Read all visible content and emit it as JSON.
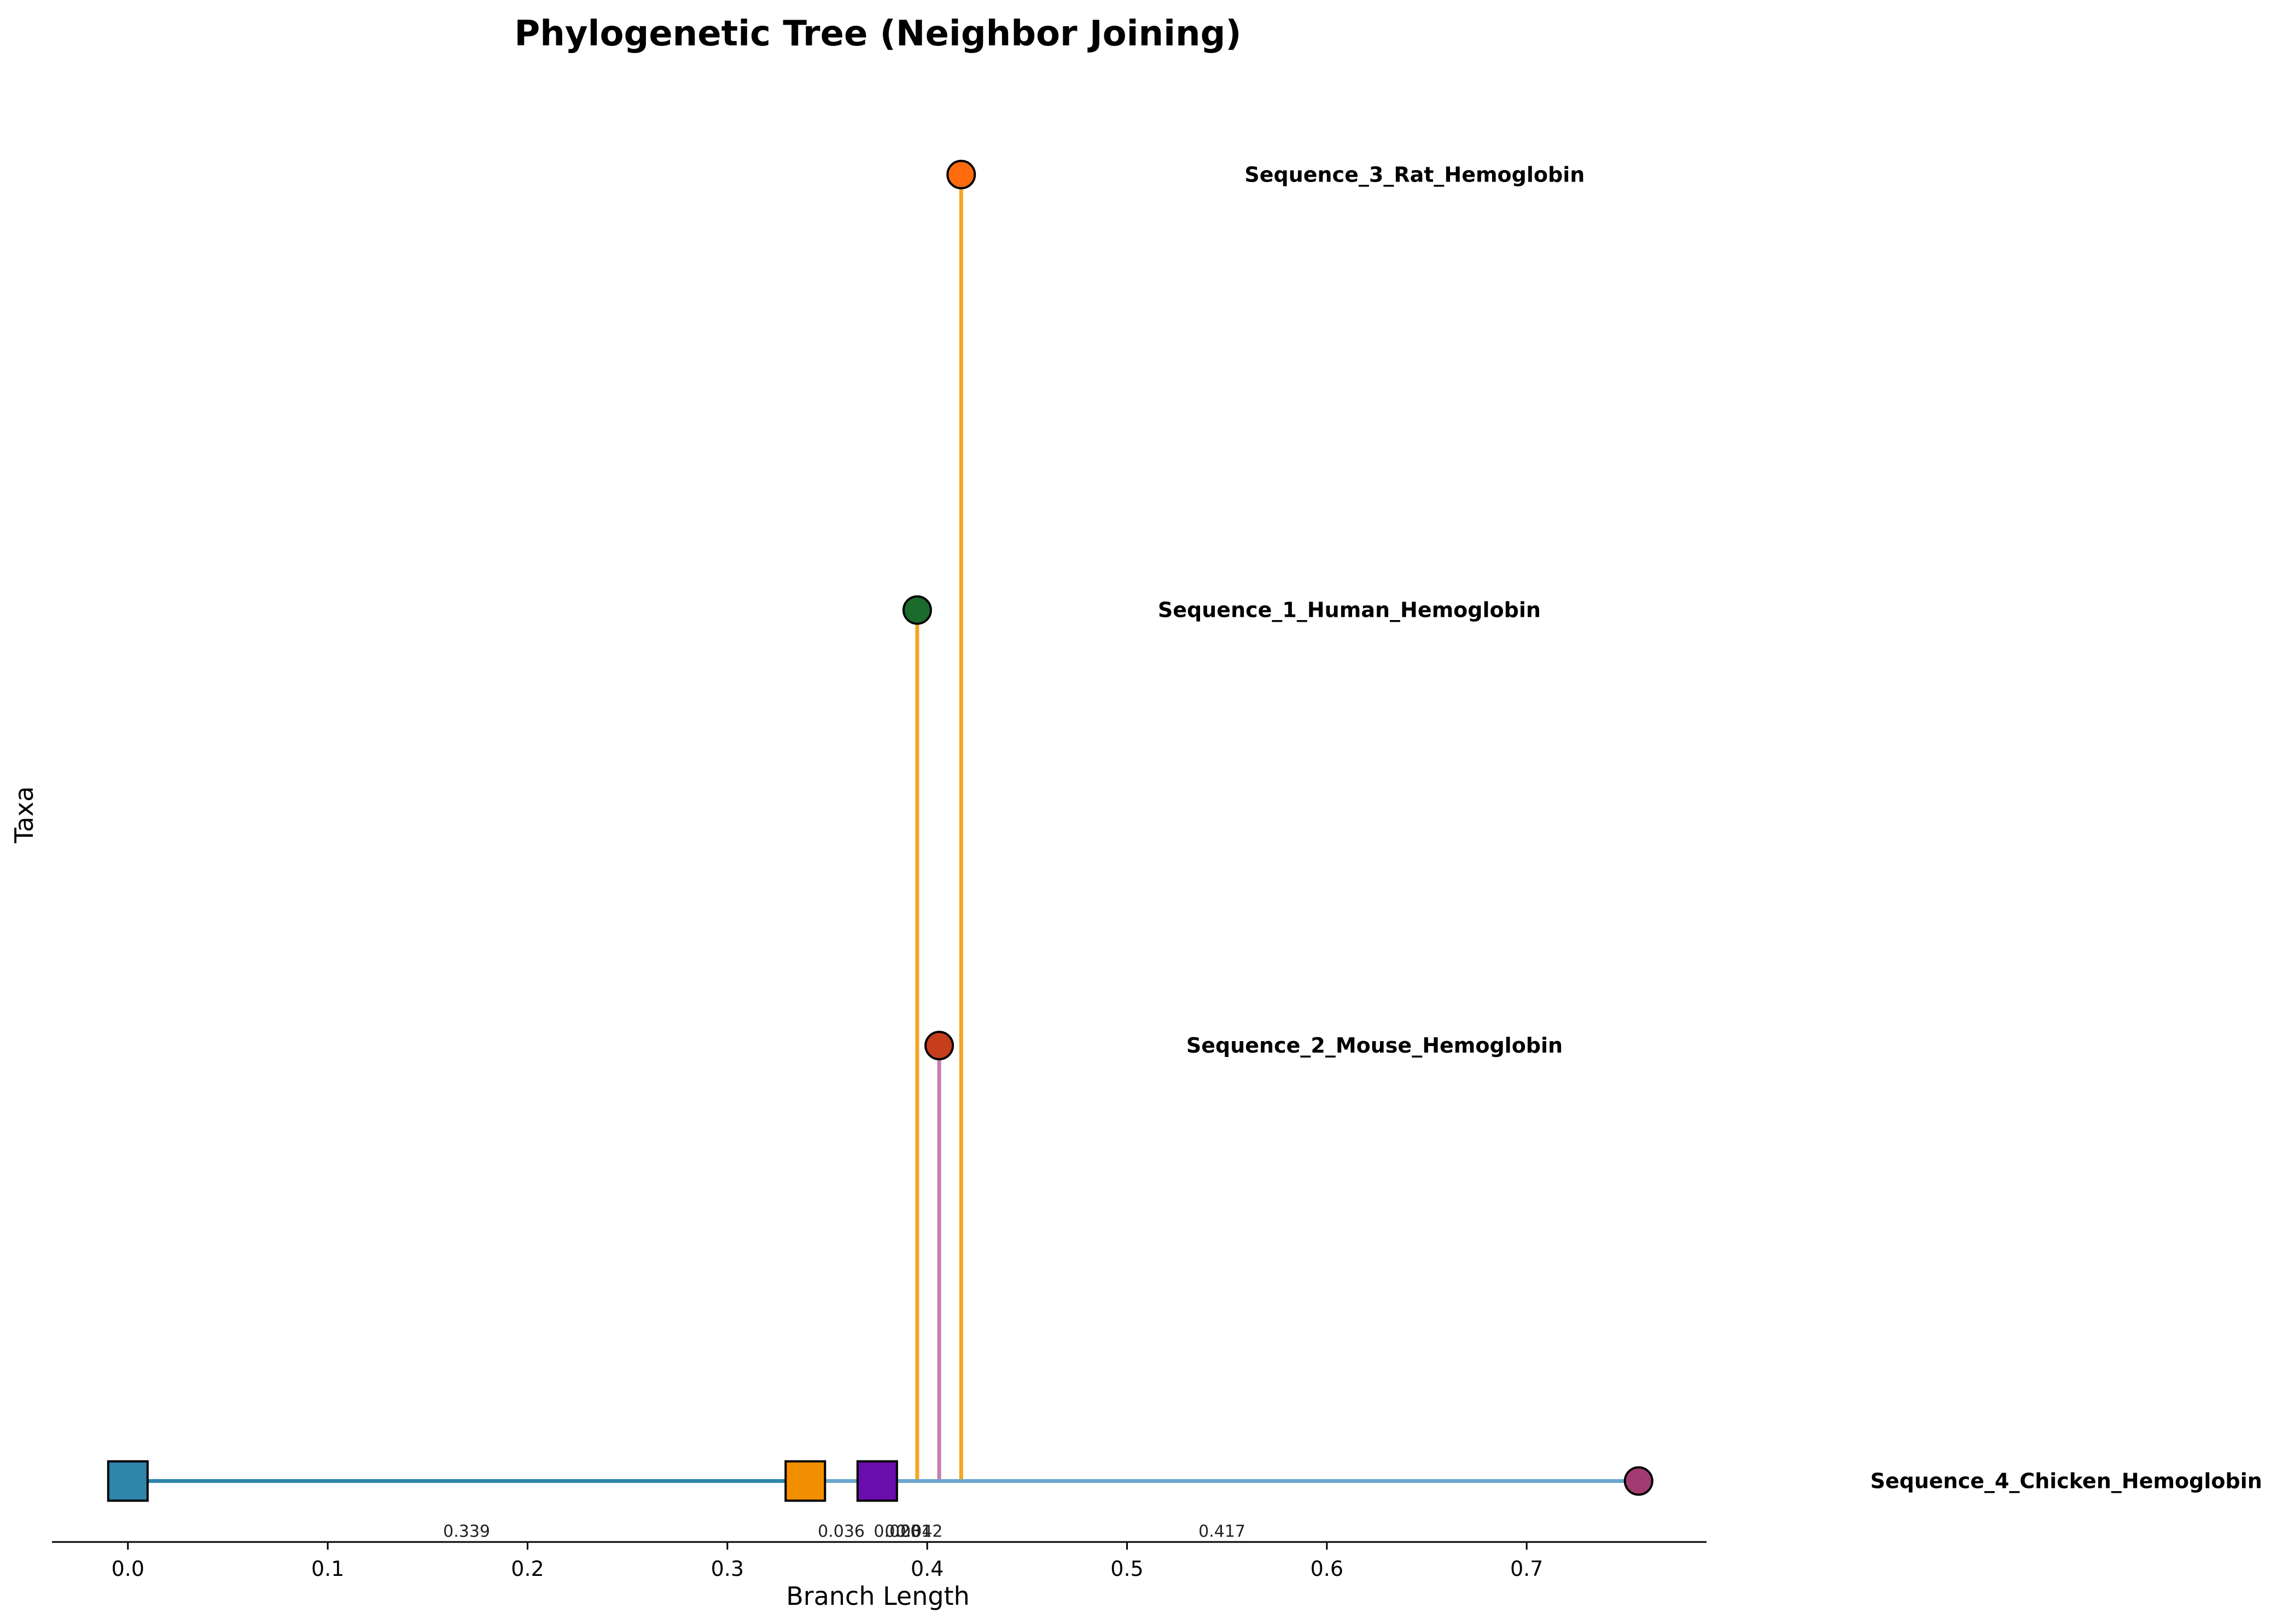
{
  "chart_data": {
    "type": "tree",
    "title": "Phylogenetic Tree (Neighbor Joining)",
    "xlabel": "Branch Length",
    "ylabel": "Taxa",
    "xlim": [
      -0.038,
      0.79
    ],
    "ylim": [
      -0.14,
      3.2
    ],
    "xticks": [
      0.0,
      0.1,
      0.2,
      0.3,
      0.4,
      0.5,
      0.6,
      0.7
    ],
    "grid": false,
    "nodes": [
      {
        "id": "root",
        "kind": "internal",
        "x": 0.0,
        "y": 0,
        "color": "#2E86AB"
      },
      {
        "id": "n1",
        "kind": "internal",
        "x": 0.339,
        "y": 0,
        "color": "#F18F01"
      },
      {
        "id": "n2",
        "kind": "internal",
        "x": 0.375,
        "y": 0,
        "color": "#6A0DAD"
      },
      {
        "id": "human",
        "kind": "leaf",
        "x": 0.395,
        "y": 2,
        "label": "Sequence_1_Human_Hemoglobin",
        "color": "#1B6B2C"
      },
      {
        "id": "mouse",
        "kind": "leaf",
        "x": 0.406,
        "y": 1,
        "label": "Sequence_2_Mouse_Hemoglobin",
        "color": "#C73E1D"
      },
      {
        "id": "rat",
        "kind": "leaf",
        "x": 0.417,
        "y": 3,
        "label": "Sequence_3_Rat_Hemoglobin",
        "color": "#FF6B0D"
      },
      {
        "id": "chicken",
        "kind": "leaf",
        "x": 0.756,
        "y": 0,
        "label": "Sequence_4_Chicken_Hemoglobin",
        "color": "#A23B72"
      }
    ],
    "edges": [
      {
        "from": "root",
        "to": "n1",
        "length": 0.339,
        "label": "0.339",
        "color": "#2E86AB"
      },
      {
        "from": "n1",
        "to": "n2",
        "length": 0.036,
        "label": "0.036",
        "color": "#A23B72"
      },
      {
        "from": "n2",
        "to": "human",
        "length": 0.02,
        "label": "0.020",
        "color": "#F5A623"
      },
      {
        "from": "n2",
        "to": "mouse",
        "length": 0.031,
        "label": "0.031",
        "color": "#C77DB0"
      },
      {
        "from": "n2",
        "to": "rat",
        "length": 0.042,
        "label": "0.042",
        "color": "#F5A623"
      },
      {
        "from": "n1",
        "to": "chicken",
        "length": 0.417,
        "label": "0.417",
        "color": "#6BA8CF"
      }
    ]
  }
}
